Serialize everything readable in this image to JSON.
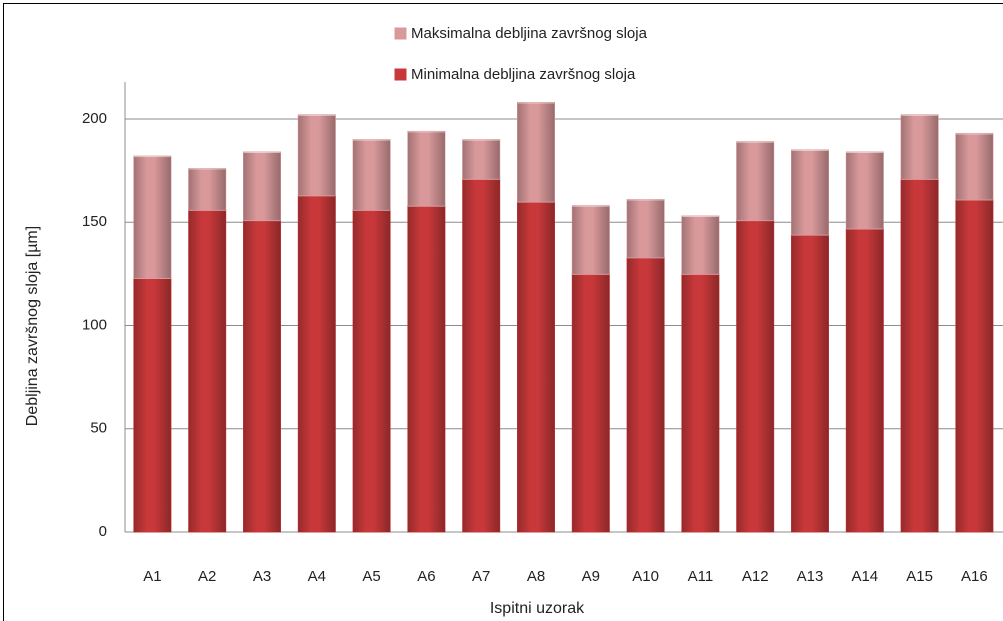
{
  "chart_data": {
    "type": "bar",
    "stacked": true,
    "x_label": "Ispitni uzorak",
    "y_label": "Debljina završnog sloja [µm]",
    "categories": [
      "A1",
      "A2",
      "A3",
      "A4",
      "A5",
      "A6",
      "A7",
      "A8",
      "A9",
      "A10",
      "A11",
      "A12",
      "A13",
      "A14",
      "A15",
      "A16"
    ],
    "series": [
      {
        "name": "Minimalna debljina završnog sloja",
        "color": "#c8383a",
        "values": [
          123,
          156,
          151,
          163,
          156,
          158,
          171,
          160,
          125,
          133,
          125,
          151,
          144,
          147,
          171,
          161
        ]
      },
      {
        "name": "Maksimalna debljina završnog sloja",
        "color": "#d9999b",
        "values": [
          59,
          20,
          33,
          39,
          34,
          36,
          19,
          48,
          33,
          28,
          28,
          38,
          41,
          37,
          31,
          32
        ]
      }
    ],
    "ylim": [
      0,
      200
    ],
    "yticks": [
      0,
      50,
      100,
      150,
      200
    ],
    "grid": true
  }
}
